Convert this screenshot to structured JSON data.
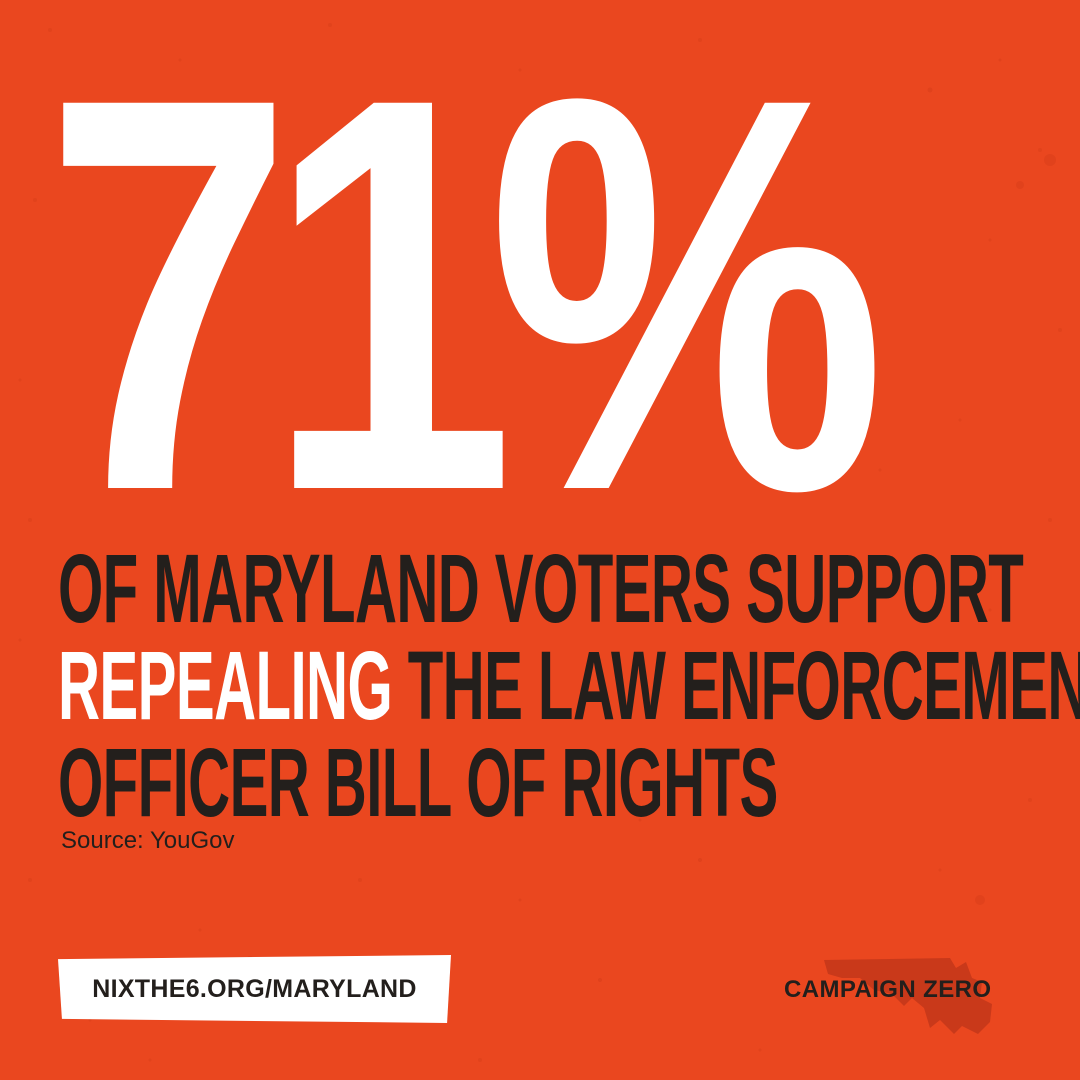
{
  "colors": {
    "background": "#ea471f",
    "text_dark": "#231f1c",
    "highlight": "#ffffff",
    "map_shape": "#c9391a"
  },
  "stat": "71%",
  "headline": {
    "line1": "OF MARYLAND VOTERS SUPPORT",
    "line2_highlight": "REPEALING",
    "line2_rest": "THE LAW ENFORCEMENT",
    "line3": "OFFICER BILL OF RIGHTS"
  },
  "source": "Source: YouGov",
  "url": "NIXTHE6.ORG/MARYLAND",
  "logo": {
    "text": "CAMPAIGN ZERO",
    "icon": "maryland-map-icon"
  }
}
